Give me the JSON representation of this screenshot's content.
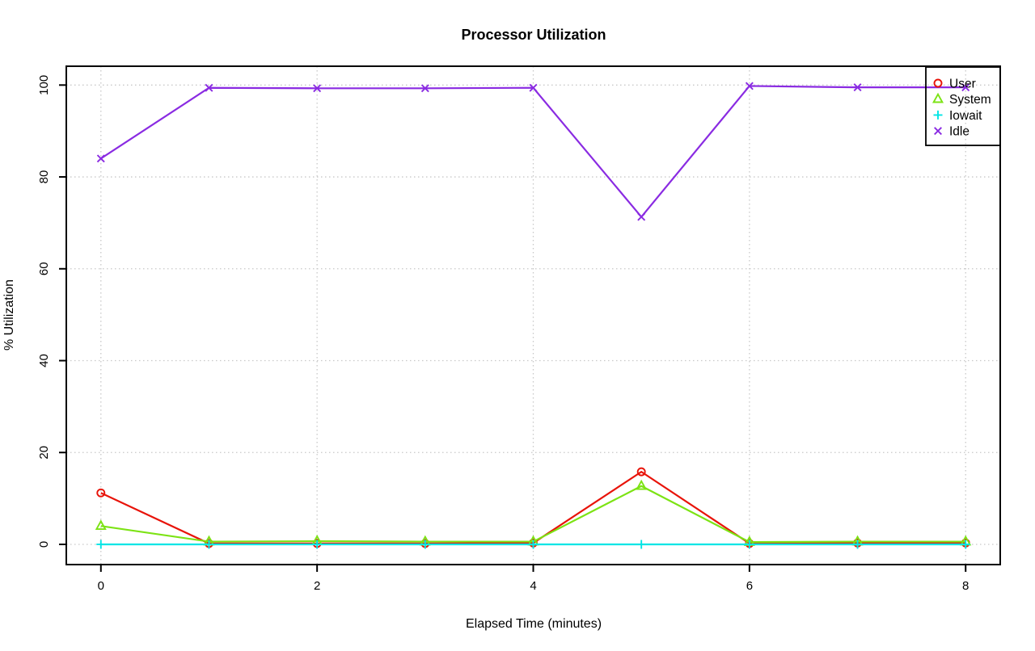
{
  "window": {
    "background_color": "#ffffff",
    "axis_color": "#000000",
    "grid_color": "#c8c8c8",
    "tick_label_color": "#000000"
  },
  "chart_data": {
    "type": "line",
    "title": "Processor Utilization",
    "xlabel": "Elapsed Time (minutes)",
    "ylabel": "% Utilization",
    "x": [
      0,
      1,
      2,
      3,
      4,
      5,
      6,
      7,
      8
    ],
    "xticks": [
      0,
      2,
      4,
      6,
      8
    ],
    "yticks": [
      0,
      20,
      40,
      60,
      80,
      100
    ],
    "xlim": [
      -0.32,
      8.32
    ],
    "ylim": [
      -4.4,
      104.1
    ],
    "grid": "dotted",
    "legend_position": "top-right",
    "series": [
      {
        "name": "User",
        "color": "#e81309",
        "marker": "circle",
        "values": [
          11.2,
          0.2,
          0.2,
          0.2,
          0.3,
          15.8,
          0.2,
          0.3,
          0.3
        ]
      },
      {
        "name": "System",
        "color": "#7ce314",
        "marker": "triangle",
        "values": [
          4.0,
          0.6,
          0.7,
          0.6,
          0.6,
          12.7,
          0.5,
          0.6,
          0.6
        ]
      },
      {
        "name": "Iowait",
        "color": "#00e5e5",
        "marker": "plus",
        "values": [
          0,
          0,
          0,
          0,
          0,
          0,
          0,
          0,
          0
        ]
      },
      {
        "name": "Idle",
        "color": "#8a2be2",
        "marker": "x",
        "values": [
          84.0,
          99.4,
          99.3,
          99.3,
          99.4,
          71.3,
          99.8,
          99.5,
          99.5
        ]
      }
    ]
  }
}
